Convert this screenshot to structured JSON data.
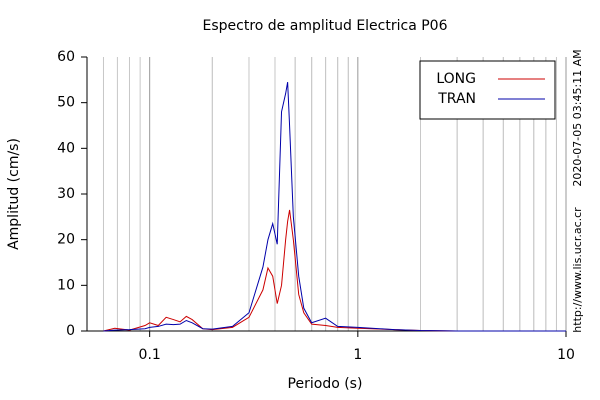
{
  "chart_data": {
    "type": "line",
    "title": "Espectro de amplitud Electrica P06",
    "x_label": "Periodo (s)",
    "y_label": "Amplitud (cm/s)",
    "annotations": [
      "2020-07-05 03:45:11 AM",
      "http://www.lis.ucr.ac.cr"
    ],
    "x": [
      0.06,
      0.068,
      0.08,
      0.095,
      0.1,
      0.11,
      0.12,
      0.13,
      0.14,
      0.15,
      0.16,
      0.18,
      0.2,
      0.25,
      0.3,
      0.35,
      0.37,
      0.39,
      0.41,
      0.43,
      0.45,
      0.46,
      0.47,
      0.49,
      0.52,
      0.55,
      0.6,
      0.7,
      0.8,
      1,
      1.5,
      2,
      3,
      10
    ],
    "series": [
      {
        "name": "LONG",
        "color": "#cc0000",
        "values": [
          0,
          0.6,
          0.2,
          1.2,
          1.8,
          1.2,
          3,
          2.5,
          2,
          3.2,
          2.5,
          0.5,
          0.3,
          0.8,
          3,
          9,
          13.8,
          12,
          6,
          10,
          20,
          24,
          26.5,
          20,
          8,
          4,
          1.5,
          1.2,
          0.8,
          0.6,
          0.3,
          0.1,
          0,
          0
        ]
      },
      {
        "name": "TRAN",
        "color": "#0000aa",
        "values": [
          0,
          0.2,
          0.3,
          0.5,
          0.8,
          1,
          1.5,
          1.4,
          1.5,
          2.3,
          1.8,
          0.5,
          0.4,
          1,
          4,
          14,
          20,
          23.5,
          19,
          48,
          52,
          54.5,
          45,
          25,
          12,
          5,
          1.8,
          2.8,
          1,
          0.8,
          0.3,
          0.1,
          0,
          0
        ]
      }
    ],
    "xlim": [
      0.05,
      10
    ],
    "xticks": [
      0.1,
      1,
      10
    ],
    "x_log": true,
    "ylim": [
      0,
      60
    ],
    "yticks": [
      0,
      10,
      20,
      30,
      40,
      50,
      60
    ],
    "grid": true,
    "legend": "upper right"
  }
}
